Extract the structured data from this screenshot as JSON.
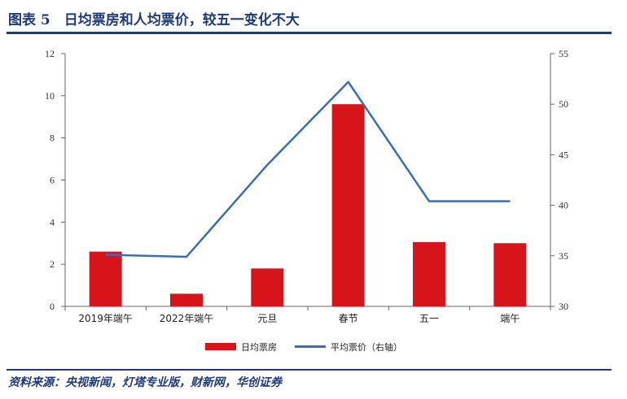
{
  "figure": {
    "title": "图表 5　日均票房和人均票价，较五一变化不大",
    "source": "资料来源：央视新闻，灯塔专业版，财新网，华创证券"
  },
  "colors": {
    "accent": "#1f3a7a",
    "bar": "#d7141a",
    "line": "#3b6cb7",
    "axis": "#666666"
  },
  "chart_data": {
    "type": "bar",
    "categories": [
      "2019年端午",
      "2022年端午",
      "元旦",
      "春节",
      "五一",
      "端午"
    ],
    "series": [
      {
        "name": "日均票房",
        "type": "bar",
        "axis": "left",
        "values": [
          2.6,
          0.6,
          1.8,
          9.6,
          3.05,
          3.0
        ]
      },
      {
        "name": "平均票价（右轴）",
        "type": "line",
        "axis": "right",
        "values": [
          35.1,
          34.9,
          44.0,
          52.2,
          40.4,
          40.4
        ]
      }
    ],
    "ylim": [
      0,
      12
    ],
    "y_ticks": [
      0,
      2,
      4,
      6,
      8,
      10,
      12
    ],
    "y2lim": [
      30,
      55
    ],
    "y2_ticks": [
      30,
      35,
      40,
      45,
      50,
      55
    ],
    "grid": false,
    "legend_position": "bottom"
  }
}
